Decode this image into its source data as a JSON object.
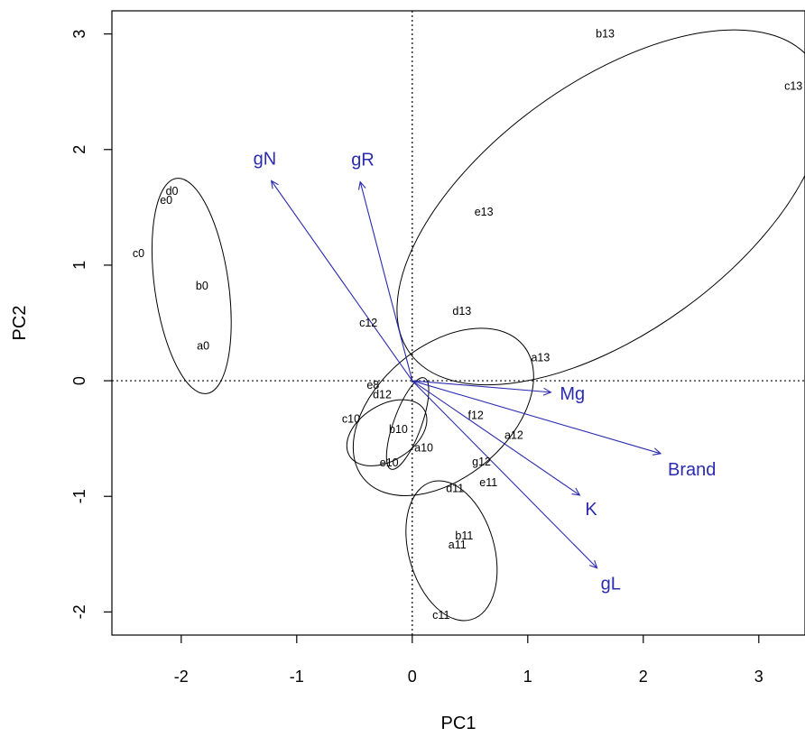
{
  "chart_data": {
    "type": "scatter",
    "xlabel": "PC1",
    "ylabel": "PC2",
    "xlim": [
      -2.6,
      3.4
    ],
    "ylim": [
      -2.2,
      3.2
    ],
    "xticks": [
      -2,
      -1,
      0,
      1,
      2,
      3
    ],
    "yticks": [
      -2,
      -1,
      0,
      1,
      2,
      3
    ],
    "reference_lines": {
      "x": 0,
      "y": 0,
      "style": "dotted"
    },
    "points": [
      {
        "label": "d0",
        "x": -2.08,
        "y": 1.64
      },
      {
        "label": "e0",
        "x": -2.13,
        "y": 1.56
      },
      {
        "label": "c0",
        "x": -2.37,
        "y": 1.1
      },
      {
        "label": "b0",
        "x": -1.82,
        "y": 0.82
      },
      {
        "label": "a0",
        "x": -1.81,
        "y": 0.3
      },
      {
        "label": "b13",
        "x": 1.67,
        "y": 3.0
      },
      {
        "label": "c13",
        "x": 3.3,
        "y": 2.55
      },
      {
        "label": "e13",
        "x": 0.62,
        "y": 1.46
      },
      {
        "label": "d13",
        "x": 0.43,
        "y": 0.6
      },
      {
        "label": "a13",
        "x": 1.11,
        "y": 0.2
      },
      {
        "label": "c12",
        "x": -0.38,
        "y": 0.5
      },
      {
        "label": "e8",
        "x": -0.34,
        "y": -0.04
      },
      {
        "label": "d12",
        "x": -0.26,
        "y": -0.12
      },
      {
        "label": "c10",
        "x": -0.53,
        "y": -0.33
      },
      {
        "label": "f12",
        "x": 0.55,
        "y": -0.3
      },
      {
        "label": "b10",
        "x": -0.12,
        "y": -0.42
      },
      {
        "label": "a12",
        "x": 0.88,
        "y": -0.47
      },
      {
        "label": "a10",
        "x": 0.1,
        "y": -0.58
      },
      {
        "label": "g12",
        "x": 0.6,
        "y": -0.7
      },
      {
        "label": "e10",
        "x": -0.2,
        "y": -0.71
      },
      {
        "label": "d11",
        "x": 0.37,
        "y": -0.93
      },
      {
        "label": "e11",
        "x": 0.66,
        "y": -0.88
      },
      {
        "label": "b11",
        "x": 0.45,
        "y": -1.34
      },
      {
        "label": "a11",
        "x": 0.39,
        "y": -1.42
      },
      {
        "label": "c11",
        "x": 0.25,
        "y": -2.03
      }
    ],
    "cluster_ellipses": [
      {
        "cx": -1.91,
        "cy": 0.82,
        "rx": 0.32,
        "ry": 0.94,
        "angle": -8
      },
      {
        "cx": 1.72,
        "cy": 1.5,
        "rx": 2.15,
        "ry": 1.08,
        "angle": -36
      },
      {
        "cx": 0.27,
        "cy": -0.27,
        "rx": 0.9,
        "ry": 0.57,
        "angle": -40
      },
      {
        "cx": -0.22,
        "cy": -0.45,
        "rx": 0.38,
        "ry": 0.24,
        "angle": -32
      },
      {
        "cx": -0.04,
        "cy": -0.37,
        "rx": 0.12,
        "ry": 0.42,
        "angle": 20
      },
      {
        "cx": 0.34,
        "cy": -1.47,
        "rx": 0.37,
        "ry": 0.62,
        "angle": -16
      }
    ],
    "vectors": [
      {
        "label": "gN",
        "x": -1.22,
        "y": 1.73
      },
      {
        "label": "gR",
        "x": -0.45,
        "y": 1.72
      },
      {
        "label": "Mg",
        "x": 1.2,
        "y": -0.1
      },
      {
        "label": "Brand",
        "x": 2.15,
        "y": -0.63
      },
      {
        "label": "K",
        "x": 1.45,
        "y": -0.99
      },
      {
        "label": "gL",
        "x": 1.6,
        "y": -1.62
      }
    ],
    "vector_color": "#2b2bb0",
    "point_color": "#000000"
  }
}
